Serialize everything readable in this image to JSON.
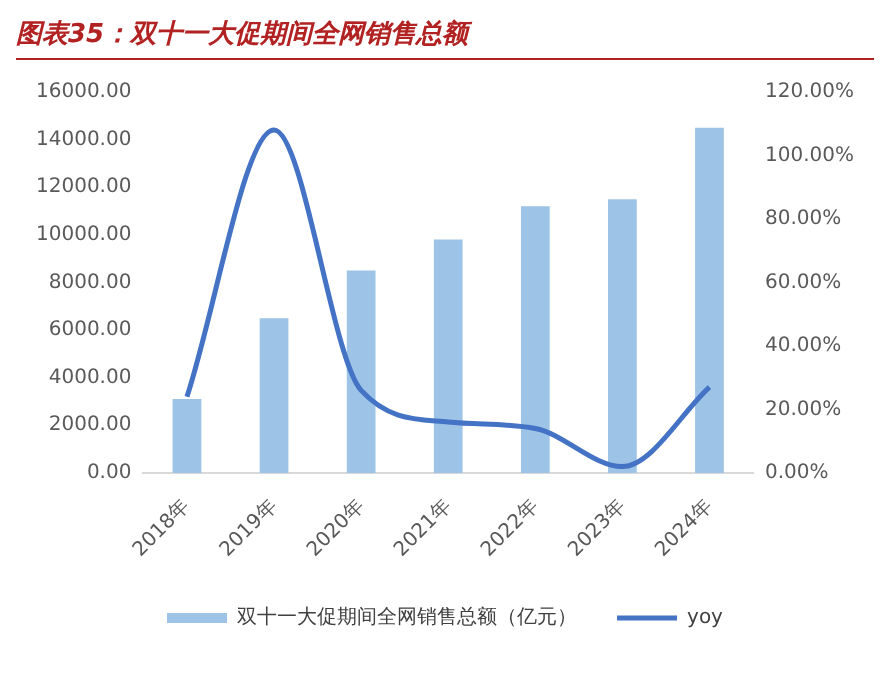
{
  "chart_data": {
    "type": "bar",
    "title": "图表35：双十一大促期间全网销售总额",
    "categories": [
      "2018年",
      "2019年",
      "2020年",
      "2021年",
      "2022年",
      "2023年",
      "2024年"
    ],
    "series": [
      {
        "name": "双十一大促期间全网销售总额（亿元）",
        "color": "#9dc3e6",
        "values": [
          3100,
          6500,
          8500,
          9800,
          11200,
          11500,
          14500
        ]
      },
      {
        "name": "yoy",
        "type": "line",
        "axis": "y2",
        "color": "#4472c4",
        "values": [
          24,
          108,
          26,
          16,
          14,
          2,
          27
        ]
      }
    ],
    "ylim": [
      0,
      16000
    ],
    "yticks": [
      {
        "value": 0,
        "label": "0.00"
      },
      {
        "value": 2000,
        "label": "2000.00"
      },
      {
        "value": 4000,
        "label": "4000.00"
      },
      {
        "value": 6000,
        "label": "6000.00"
      },
      {
        "value": 8000,
        "label": "8000.00"
      },
      {
        "value": 10000,
        "label": "10000.00"
      },
      {
        "value": 12000,
        "label": "12000.00"
      },
      {
        "value": 14000,
        "label": "14000.00"
      },
      {
        "value": 16000,
        "label": "16000.00"
      }
    ],
    "y2lim": [
      0,
      120
    ],
    "y2ticks": [
      {
        "value": 0,
        "label": "0.00%"
      },
      {
        "value": 20,
        "label": "20.00%"
      },
      {
        "value": 40,
        "label": "40.00%"
      },
      {
        "value": 60,
        "label": "60.00%"
      },
      {
        "value": 80,
        "label": "80.00%"
      },
      {
        "value": 100,
        "label": "100.00%"
      },
      {
        "value": 120,
        "label": "120.00%"
      }
    ],
    "grid": false,
    "legend": "bottom",
    "marker": "none"
  }
}
